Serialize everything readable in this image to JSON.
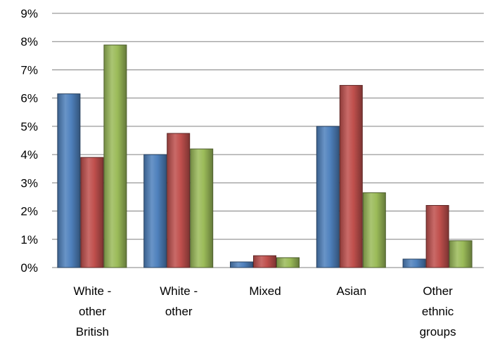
{
  "chart_data": {
    "type": "bar",
    "title": "",
    "xlabel": "",
    "ylabel": "",
    "ylim": [
      0,
      9
    ],
    "y_ticks": [
      "0%",
      "1%",
      "2%",
      "3%",
      "4%",
      "5%",
      "6%",
      "7%",
      "8%",
      "9%"
    ],
    "grid": true,
    "legend": "none",
    "categories": [
      [
        "White -",
        "other",
        "British"
      ],
      [
        "White -",
        "other"
      ],
      [
        "Mixed"
      ],
      [
        "Asian"
      ],
      [
        "Other",
        "ethnic",
        "groups"
      ]
    ],
    "series": [
      {
        "color": "#4f81bd",
        "values": [
          6.15,
          4.0,
          0.2,
          5.0,
          0.3
        ]
      },
      {
        "color": "#c0504d",
        "values": [
          3.9,
          4.75,
          0.42,
          6.45,
          2.2
        ]
      },
      {
        "color": "#9bbb59",
        "values": [
          7.88,
          4.2,
          0.35,
          2.65,
          0.95
        ]
      }
    ]
  }
}
